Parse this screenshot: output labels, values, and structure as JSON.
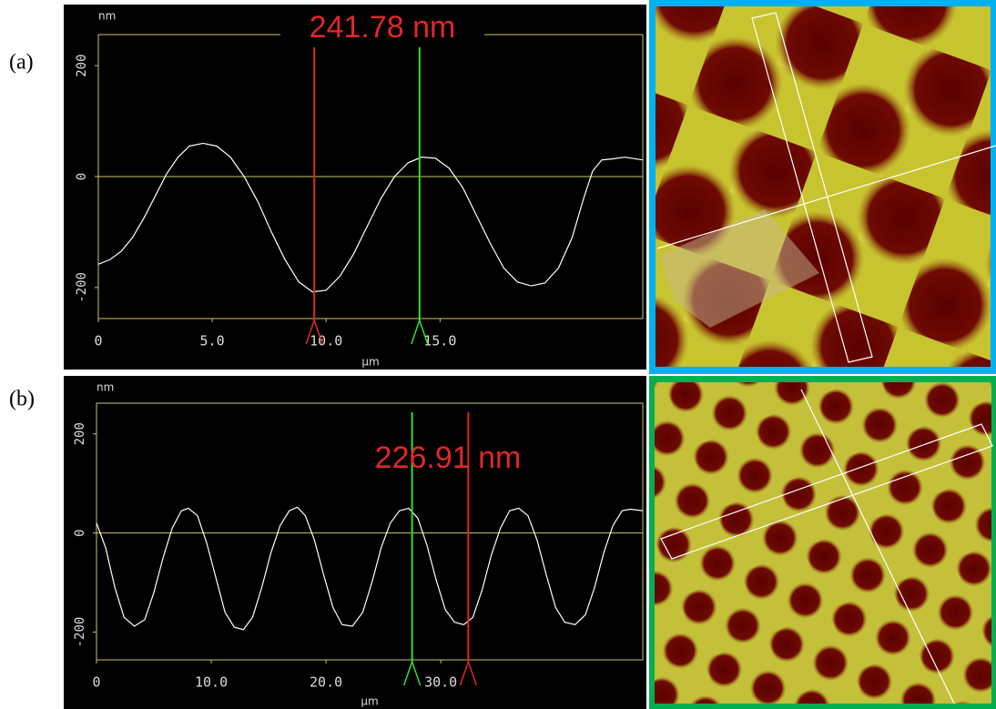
{
  "panel_labels": [
    "(a)",
    "(b)"
  ],
  "chart_data": [
    {
      "type": "line",
      "annotation": "241.78 nm",
      "xlabel": "µm",
      "ylabel": "nm",
      "color": "#ffffff",
      "axis_color": "#c8c864",
      "zero_line": true,
      "xlim": [
        0,
        23.9
      ],
      "xticks": [
        0,
        {
          "value": 5,
          "label": "5.0"
        },
        {
          "value": 10,
          "label": "10.0"
        },
        {
          "value": 15,
          "label": "15.0"
        }
      ],
      "ylim": [
        -256,
        256
      ],
      "yticks": [
        -200,
        0,
        200
      ],
      "x": [
        0,
        0.5,
        1.0,
        1.5,
        2.0,
        2.5,
        3.0,
        3.5,
        4.0,
        4.6,
        5.2,
        5.8,
        6.4,
        7.0,
        7.6,
        8.2,
        8.8,
        9.4,
        10.0,
        10.6,
        11.2,
        11.8,
        12.4,
        13.0,
        13.6,
        14.2,
        14.8,
        15.4,
        16.0,
        16.6,
        17.2,
        17.8,
        18.4,
        19.0,
        19.6,
        20.2,
        20.8,
        21.3,
        21.7,
        22.1,
        22.6,
        23.1,
        23.9
      ],
      "values": [
        -158,
        -150,
        -135,
        -110,
        -75,
        -35,
        5,
        35,
        55,
        60,
        55,
        35,
        0,
        -45,
        -100,
        -150,
        -190,
        -208,
        -205,
        -180,
        -140,
        -90,
        -40,
        0,
        25,
        35,
        33,
        15,
        -20,
        -70,
        -120,
        -165,
        -190,
        -197,
        -192,
        -165,
        -110,
        -40,
        10,
        30,
        32,
        35,
        30
      ],
      "cursors": [
        {
          "x": 9.48,
          "color": "#e02828"
        },
        {
          "x": 14.1,
          "color": "#30e030"
        }
      ]
    },
    {
      "type": "line",
      "annotation": "226.91 nm",
      "xlabel": "µm",
      "ylabel": "nm",
      "color": "#ffffff",
      "axis_color": "#c8c864",
      "zero_line": true,
      "xlim": [
        0,
        47.6
      ],
      "xticks": [
        0,
        {
          "value": 10,
          "label": "10.0"
        },
        {
          "value": 20,
          "label": "20.0"
        },
        {
          "value": 30,
          "label": "30.0"
        }
      ],
      "ylim": [
        -256,
        262
      ],
      "yticks": [
        -200,
        0,
        200
      ],
      "x": [
        0,
        0.8,
        1.6,
        2.4,
        3.3,
        4.2,
        5.0,
        5.8,
        6.6,
        7.4,
        8.0,
        8.8,
        9.6,
        10.4,
        11.2,
        12.0,
        12.8,
        13.6,
        14.4,
        15.2,
        16.0,
        16.8,
        17.5,
        18.2,
        19.0,
        19.8,
        20.6,
        21.4,
        22.3,
        23.2,
        24.0,
        24.8,
        25.6,
        26.4,
        27.2,
        28.0,
        28.8,
        29.6,
        30.4,
        31.2,
        32.0,
        32.8,
        33.6,
        34.4,
        35.2,
        36.0,
        36.8,
        37.6,
        38.4,
        39.2,
        40.0,
        40.8,
        41.7,
        42.6,
        43.4,
        44.2,
        45.0,
        45.8,
        46.5,
        47.6
      ],
      "values": [
        20,
        -30,
        -110,
        -170,
        -188,
        -175,
        -120,
        -50,
        10,
        45,
        50,
        35,
        -20,
        -90,
        -160,
        -190,
        -195,
        -170,
        -110,
        -40,
        15,
        45,
        52,
        35,
        -15,
        -85,
        -150,
        -185,
        -188,
        -160,
        -100,
        -30,
        20,
        45,
        50,
        30,
        -25,
        -95,
        -155,
        -180,
        -185,
        -170,
        -115,
        -45,
        10,
        45,
        50,
        35,
        -15,
        -85,
        -150,
        -180,
        -185,
        -165,
        -110,
        -40,
        15,
        45,
        48,
        45
      ],
      "cursors": [
        {
          "x": 27.5,
          "color": "#30e030"
        },
        {
          "x": 32.4,
          "color": "#e02828"
        }
      ]
    }
  ]
}
